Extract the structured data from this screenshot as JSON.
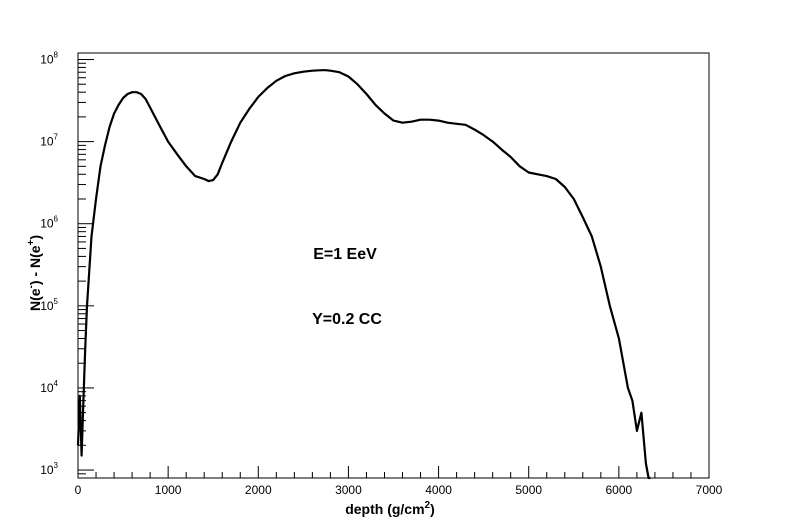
{
  "chart_data": {
    "type": "line",
    "title": "",
    "xlabel": "depth (g/cm",
    "xlabel_sup": "2",
    "xlabel_end": ")",
    "ylabel_parts": [
      "N(e",
      "-",
      ") - N(e",
      "+",
      ")"
    ],
    "xlim": [
      0,
      7000
    ],
    "ylim": [
      800,
      120000000
    ],
    "yscale": "log",
    "grid": false,
    "x_ticks": [
      0,
      1000,
      2000,
      3000,
      4000,
      5000,
      6000,
      7000
    ],
    "x_tick_labels": [
      "0",
      "1000",
      "2000",
      "3000",
      "4000",
      "5000",
      "6000",
      "7000"
    ],
    "y_ticks": [
      1000,
      10000,
      100000,
      1000000,
      10000000,
      100000000
    ],
    "y_tick_labels": [
      {
        "base": "10",
        "exp": "3"
      },
      {
        "base": "10",
        "exp": "4"
      },
      {
        "base": "10",
        "exp": "5"
      },
      {
        "base": "10",
        "exp": "6"
      },
      {
        "base": "10",
        "exp": "7"
      },
      {
        "base": "10",
        "exp": "8"
      }
    ],
    "annotations": [
      "E=1 EeV",
      "Y=0.2  CC"
    ],
    "series": [
      {
        "x": [
          0,
          20,
          40,
          60,
          80,
          100,
          150,
          200,
          250,
          300,
          350,
          400,
          450,
          500,
          550,
          600,
          650,
          700,
          750,
          800,
          900,
          1000,
          1100,
          1200,
          1300,
          1400,
          1450,
          1500,
          1550,
          1600,
          1700,
          1800,
          1900,
          2000,
          2100,
          2200,
          2300,
          2400,
          2500,
          2600,
          2700,
          2750,
          2800,
          2900,
          3000,
          3100,
          3200,
          3300,
          3400,
          3500,
          3600,
          3700,
          3800,
          3900,
          4000,
          4100,
          4200,
          4300,
          4400,
          4500,
          4600,
          4700,
          4800,
          4900,
          5000,
          5100,
          5200,
          5300,
          5400,
          5500,
          5600,
          5700,
          5800,
          5900,
          6000,
          6050,
          6100,
          6150,
          6200,
          6250,
          6300,
          6330,
          6350
        ],
        "y": [
          2000,
          8000,
          1500,
          7000,
          30000,
          100000,
          700000,
          2000000,
          5000000,
          9000000,
          15000000,
          22000000,
          28000000,
          34000000,
          38000000,
          40000000,
          40000000,
          38000000,
          33000000,
          26000000,
          16000000,
          10000000,
          7000000,
          5000000,
          3800000,
          3500000,
          3300000,
          3400000,
          4000000,
          5500000,
          10000000,
          17000000,
          25000000,
          35000000,
          45000000,
          55000000,
          63000000,
          68000000,
          71000000,
          73000000,
          74000000,
          74000000,
          73000000,
          70000000,
          62000000,
          50000000,
          38000000,
          28000000,
          22000000,
          18000000,
          17000000,
          17500000,
          18500000,
          18500000,
          18000000,
          17000000,
          16500000,
          16000000,
          14000000,
          12000000,
          10000000,
          8000000,
          6500000,
          5000000,
          4200000,
          4000000,
          3800000,
          3500000,
          2800000,
          2000000,
          1200000,
          700000,
          300000,
          100000,
          40000,
          20000,
          10000,
          7000,
          3000,
          5000,
          1200,
          800,
          800
        ]
      }
    ]
  }
}
